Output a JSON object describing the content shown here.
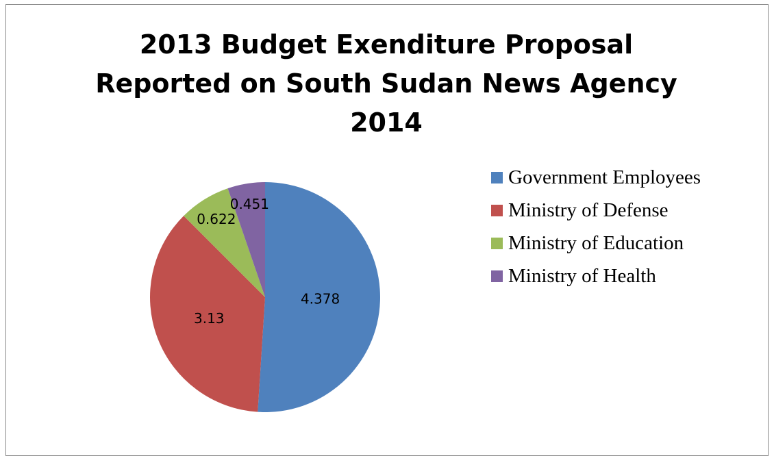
{
  "chart_data": {
    "type": "pie",
    "title": [
      "2013 Budget Exenditure Proposal",
      "Reported on South Sudan News Agency",
      "2014"
    ],
    "categories": [
      "Government Employees",
      "Ministry of Defense",
      "Ministry of Education",
      "Ministry of Health"
    ],
    "values": [
      4.378,
      3.13,
      0.622,
      0.451
    ],
    "data_labels": [
      "4.378",
      "3.13",
      "0.622",
      "0.451"
    ],
    "colors": [
      "#4F81BD",
      "#C0504D",
      "#9BBB59",
      "#8064A2"
    ],
    "legend_position": "right"
  }
}
